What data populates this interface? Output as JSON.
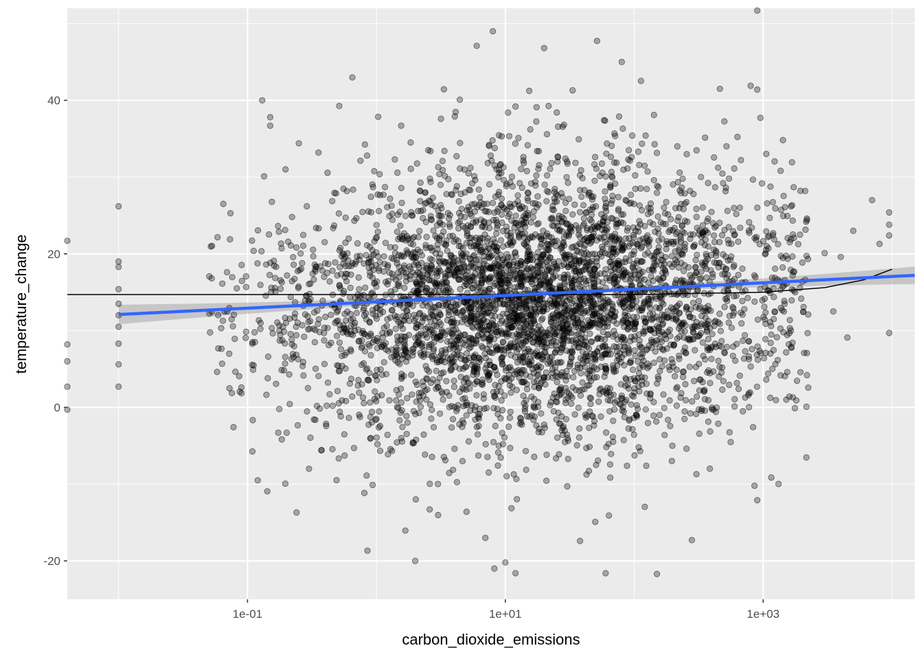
{
  "chart_data": {
    "type": "scatter",
    "title": "",
    "xlabel": "carbon_dioxide_emissions",
    "ylabel": "temperature_change",
    "x_scale": "log10",
    "xlim": [
      0.004,
      15000
    ],
    "ylim": [
      -25,
      52
    ],
    "x_ticks": [
      {
        "value": 0.1,
        "label": "1e-01"
      },
      {
        "value": 10,
        "label": "1e+01"
      },
      {
        "value": 1000,
        "label": "1e+03"
      }
    ],
    "x_minor_ticks": [
      0.01,
      1,
      100,
      10000
    ],
    "y_ticks": [
      {
        "value": -20,
        "label": "-20"
      },
      {
        "value": 0,
        "label": "0"
      },
      {
        "value": 20,
        "label": "20"
      },
      {
        "value": 40,
        "label": "40"
      }
    ],
    "y_minor_ticks": [
      -10,
      10,
      30,
      50
    ],
    "grid": true,
    "legend": "none",
    "point_color": "#000000",
    "point_alpha": 0.3,
    "n_points_approx": 4500,
    "points_sample": [
      [
        0.004,
        21.7
      ],
      [
        0.004,
        8.2
      ],
      [
        0.004,
        6.0
      ],
      [
        0.004,
        2.7
      ],
      [
        0.004,
        -0.3
      ],
      [
        0.01,
        26.2
      ],
      [
        0.01,
        19.0
      ],
      [
        0.01,
        18.3
      ],
      [
        0.01,
        15.4
      ],
      [
        0.01,
        13.5
      ],
      [
        0.01,
        12.0
      ],
      [
        0.01,
        10.5
      ],
      [
        0.01,
        8.3
      ],
      [
        0.01,
        5.6
      ],
      [
        0.01,
        2.7
      ],
      [
        0.13,
        40.0
      ],
      [
        0.15,
        37.8
      ],
      [
        0.15,
        36.7
      ],
      [
        0.25,
        34.4
      ],
      [
        0.12,
        -9.5
      ],
      [
        0.24,
        -13.7
      ],
      [
        0.3,
        -8.0
      ],
      [
        2.0,
        -20.0
      ],
      [
        8.0,
        49.0
      ],
      [
        6.0,
        47.1
      ],
      [
        20.0,
        46.8
      ],
      [
        12.0,
        39.2
      ],
      [
        80.0,
        45.0
      ],
      [
        900.0,
        51.7
      ],
      [
        800.0,
        41.9
      ],
      [
        900.0,
        41.4
      ],
      [
        10.0,
        -20.2
      ],
      [
        12.0,
        -21.6
      ],
      [
        60.0,
        -21.6
      ],
      [
        150.0,
        -21.7
      ],
      [
        280.0,
        -17.3
      ],
      [
        7.0,
        -17.0
      ],
      [
        5.0,
        -13.6
      ],
      [
        38.0,
        -17.4
      ],
      [
        900.0,
        -12.1
      ],
      [
        9500.0,
        25.4
      ],
      [
        9500.0,
        23.8
      ],
      [
        9500.0,
        22.4
      ],
      [
        9500.0,
        9.7
      ],
      [
        8000.0,
        21.3
      ],
      [
        7000.0,
        27.0
      ],
      [
        5000.0,
        23.0
      ],
      [
        4000.0,
        19.6
      ],
      [
        3000.0,
        20.1
      ],
      [
        3500.0,
        12.5
      ],
      [
        4500.0,
        9.1
      ]
    ],
    "series": [
      {
        "type": "linear-fit",
        "color": "#3366ff",
        "ci_band": true,
        "x": [
          0.01,
          15000
        ],
        "y": [
          12.1,
          17.2
        ]
      },
      {
        "type": "smooth",
        "color": "#000000",
        "x": [
          0.004,
          0.1,
          1,
          10,
          100,
          1000,
          3000,
          6000,
          10000
        ],
        "y": [
          14.7,
          14.7,
          14.7,
          14.7,
          14.7,
          15.0,
          15.6,
          16.6,
          18.0
        ]
      }
    ]
  }
}
